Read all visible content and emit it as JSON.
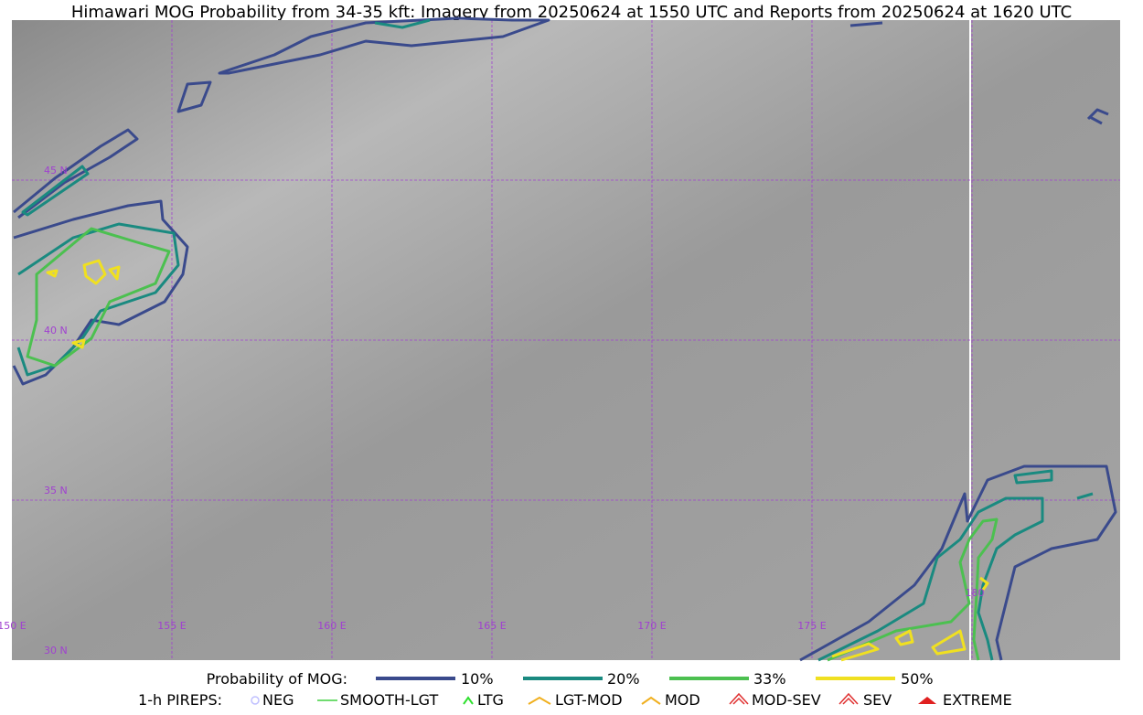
{
  "title": "Himawari MOG Probability from 34-35 kft: Imagery from 20250624 at 1550 UTC and Reports from 20250624 at 1620 UTC",
  "map": {
    "lat_labels": [
      "45 N",
      "40 N",
      "35 N",
      "30 N"
    ],
    "lon_labels": [
      "150 E",
      "155 E",
      "160 E",
      "165 E",
      "170 E",
      "175 E",
      "180"
    ]
  },
  "legend": {
    "probability": {
      "title": "Probability of MOG:",
      "items": [
        "10%",
        "20%",
        "33%",
        "50%"
      ]
    },
    "pireps": {
      "title": "1-h PIREPS:",
      "items": [
        "NEG",
        "SMOOTH-LGT",
        "LTG",
        "LGT-MOD",
        "MOD",
        "MOD-SEV",
        "SEV",
        "EXTREME"
      ]
    }
  }
}
